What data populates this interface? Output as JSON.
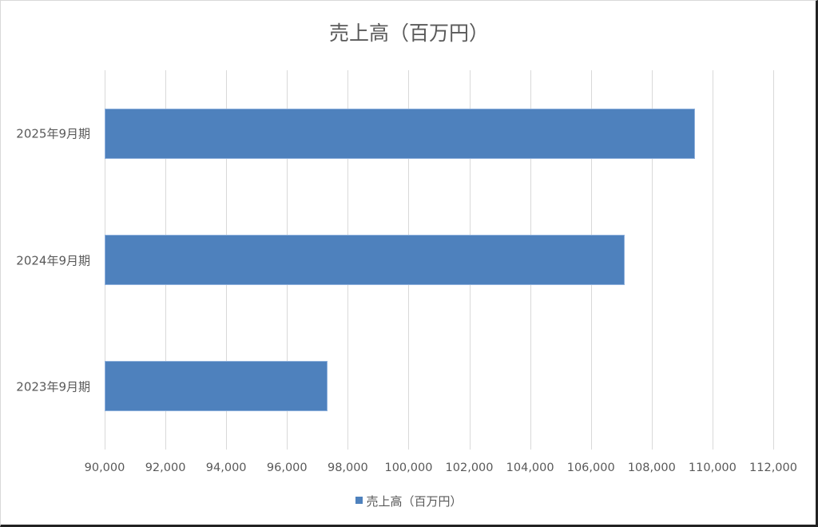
{
  "chart_data": {
    "type": "bar",
    "orientation": "horizontal",
    "title": "売上高（百万円）",
    "categories": [
      "2023年9月期",
      "2024年9月期",
      "2025年9月期"
    ],
    "series": [
      {
        "name": "売上高（百万円）",
        "values": [
          97330,
          107110,
          109420
        ],
        "color": "#4e81bd"
      }
    ],
    "xlabel": "",
    "ylabel": "",
    "xlim": [
      90000,
      112000
    ],
    "x_ticks": [
      "90,000",
      "92,000",
      "94,000",
      "96,000",
      "98,000",
      "100,000",
      "102,000",
      "104,000",
      "106,000",
      "108,000",
      "110,000",
      "112,000"
    ],
    "grid": true,
    "legend_position": "bottom"
  },
  "chart": {
    "title": "売上高（百万円）",
    "legend_label": "売上高（百万円）",
    "bar_color": "#4e81bd",
    "grid_color": "#d9d9d9",
    "text_color": "#595959"
  }
}
